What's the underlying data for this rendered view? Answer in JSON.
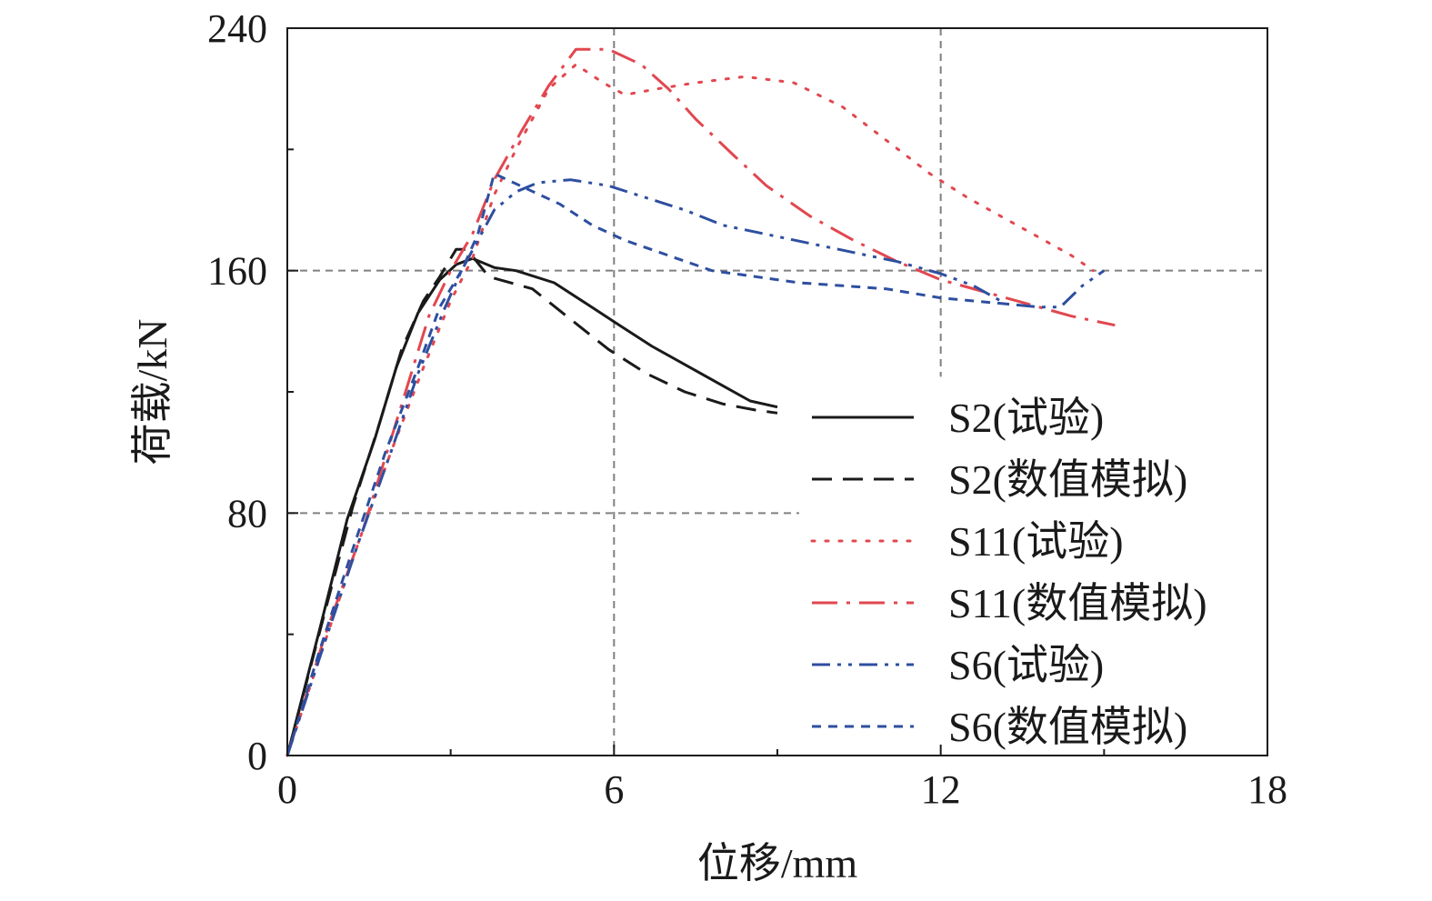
{
  "chart_data": {
    "type": "line",
    "xlabel": "位移/mm",
    "ylabel": "荷载/kN",
    "xlim": [
      0,
      18
    ],
    "ylim": [
      0,
      240
    ],
    "xticks": [
      0,
      6,
      12,
      18
    ],
    "yticks": [
      0,
      80,
      160,
      240
    ],
    "grid": "dashed at x=6, x=12 (to y≈125), y=80 (to x≈9.4), y=160",
    "legend_position": "lower-right",
    "series": [
      {
        "name": "S2(试验)",
        "color": "#1a1a1a",
        "style": "solid",
        "points": [
          [
            0,
            0
          ],
          [
            0.6,
            42
          ],
          [
            1.1,
            78
          ],
          [
            1.6,
            104
          ],
          [
            2.0,
            128
          ],
          [
            2.4,
            146
          ],
          [
            2.8,
            157
          ],
          [
            3.1,
            162
          ],
          [
            3.4,
            164
          ],
          [
            3.8,
            161
          ],
          [
            4.2,
            160
          ],
          [
            4.9,
            156
          ],
          [
            5.5,
            149
          ],
          [
            6.1,
            142
          ],
          [
            6.7,
            135
          ],
          [
            7.4,
            128
          ],
          [
            8.1,
            121
          ],
          [
            8.5,
            117
          ],
          [
            9.0,
            115
          ]
        ]
      },
      {
        "name": "S2(数值模拟)",
        "color": "#1a1a1a",
        "style": "dashed",
        "points": [
          [
            0,
            0
          ],
          [
            0.7,
            48
          ],
          [
            1.2,
            82
          ],
          [
            1.7,
            110
          ],
          [
            2.1,
            134
          ],
          [
            2.5,
            150
          ],
          [
            2.8,
            158
          ],
          [
            3.1,
            167
          ],
          [
            3.3,
            167
          ],
          [
            3.7,
            158
          ],
          [
            4.5,
            154
          ],
          [
            5.2,
            144
          ],
          [
            5.9,
            134
          ],
          [
            6.6,
            126
          ],
          [
            7.3,
            120
          ],
          [
            8.0,
            116
          ],
          [
            8.6,
            114
          ],
          [
            9.0,
            113
          ]
        ]
      },
      {
        "name": "S11(试验)",
        "color": "#e2474f",
        "style": "dotted",
        "points": [
          [
            0,
            0
          ],
          [
            0.7,
            38
          ],
          [
            1.3,
            70
          ],
          [
            1.9,
            100
          ],
          [
            2.5,
            128
          ],
          [
            3.0,
            150
          ],
          [
            3.4,
            164
          ],
          [
            3.8,
            185
          ],
          [
            4.2,
            200
          ],
          [
            4.8,
            220
          ],
          [
            5.3,
            228
          ],
          [
            5.8,
            222
          ],
          [
            6.2,
            218
          ],
          [
            6.8,
            220
          ],
          [
            7.5,
            222
          ],
          [
            8.4,
            224
          ],
          [
            9.3,
            222
          ],
          [
            10.2,
            214
          ],
          [
            11.0,
            203
          ],
          [
            11.8,
            192
          ],
          [
            12.5,
            184
          ],
          [
            13.2,
            177
          ],
          [
            13.9,
            170
          ],
          [
            14.4,
            165
          ],
          [
            14.8,
            160
          ]
        ]
      },
      {
        "name": "S11(数值模拟)",
        "color": "#e2474f",
        "style": "dashdot",
        "points": [
          [
            0,
            0
          ],
          [
            0.7,
            40
          ],
          [
            1.4,
            75
          ],
          [
            2.0,
            110
          ],
          [
            2.6,
            145
          ],
          [
            3.0,
            160
          ],
          [
            3.4,
            172
          ],
          [
            3.8,
            190
          ],
          [
            4.3,
            206
          ],
          [
            4.8,
            221
          ],
          [
            5.3,
            233
          ],
          [
            5.9,
            233
          ],
          [
            6.5,
            228
          ],
          [
            7.0,
            220
          ],
          [
            7.5,
            210
          ],
          [
            8.2,
            198
          ],
          [
            8.8,
            188
          ],
          [
            9.6,
            178
          ],
          [
            10.4,
            170
          ],
          [
            11.2,
            163
          ],
          [
            12.0,
            157
          ],
          [
            12.8,
            153
          ],
          [
            13.6,
            149
          ],
          [
            14.4,
            145
          ],
          [
            15.2,
            142
          ]
        ]
      },
      {
        "name": "S6(试验)",
        "color": "#2e4fa0",
        "style": "dashdotdot",
        "points": [
          [
            0,
            0
          ],
          [
            0.7,
            38
          ],
          [
            1.3,
            70
          ],
          [
            1.9,
            100
          ],
          [
            2.4,
            126
          ],
          [
            2.9,
            148
          ],
          [
            3.2,
            160
          ],
          [
            3.5,
            170
          ],
          [
            3.8,
            180
          ],
          [
            4.2,
            186
          ],
          [
            4.6,
            189
          ],
          [
            5.2,
            190
          ],
          [
            5.9,
            188
          ],
          [
            6.6,
            184
          ],
          [
            7.3,
            180
          ],
          [
            8.0,
            175
          ],
          [
            8.8,
            172
          ],
          [
            9.6,
            169
          ],
          [
            10.4,
            166
          ],
          [
            11.2,
            163
          ],
          [
            12.0,
            159
          ],
          [
            12.6,
            155
          ],
          [
            13.2,
            149
          ],
          [
            13.8,
            148
          ],
          [
            14.2,
            148
          ],
          [
            14.6,
            155
          ],
          [
            15.0,
            160
          ]
        ]
      },
      {
        "name": "S6(数值模拟)",
        "color": "#2e4fa0",
        "style": "shortdash",
        "points": [
          [
            0,
            0
          ],
          [
            0.6,
            35
          ],
          [
            1.2,
            68
          ],
          [
            1.8,
            100
          ],
          [
            2.4,
            128
          ],
          [
            2.8,
            148
          ],
          [
            3.2,
            160
          ],
          [
            3.5,
            172
          ],
          [
            3.8,
            192
          ],
          [
            4.4,
            187
          ],
          [
            5.0,
            182
          ],
          [
            5.6,
            175
          ],
          [
            6.2,
            170
          ],
          [
            7.0,
            165
          ],
          [
            7.8,
            160
          ],
          [
            8.6,
            158
          ],
          [
            9.4,
            156
          ],
          [
            10.2,
            155
          ],
          [
            11.0,
            154
          ],
          [
            12.0,
            151
          ],
          [
            12.6,
            150
          ],
          [
            13.2,
            149
          ]
        ]
      }
    ]
  }
}
